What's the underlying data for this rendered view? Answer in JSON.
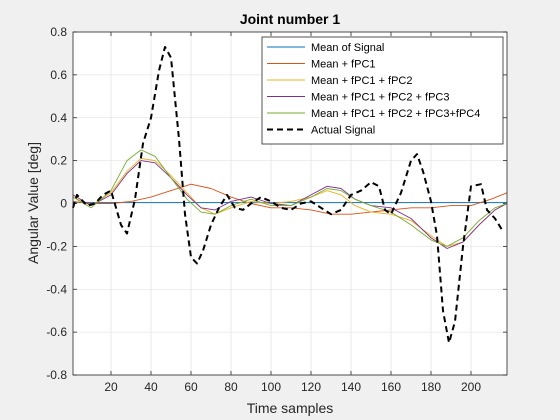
{
  "chart_data": {
    "type": "line",
    "title": "Joint number 1",
    "xlabel": "Time samples",
    "ylabel": "Angular Value [deg]",
    "xlim": [
      1,
      218
    ],
    "ylim": [
      -0.8,
      0.8
    ],
    "xticks": [
      20,
      40,
      60,
      80,
      100,
      120,
      140,
      160,
      180,
      200
    ],
    "yticks": [
      -0.8,
      -0.6,
      -0.4,
      -0.2,
      0,
      0.2,
      0.4,
      0.6,
      0.8
    ],
    "grid": true,
    "legend_position": "top-right",
    "series": [
      {
        "name": "Mean of Signal",
        "color": "#0072bd",
        "dash": "solid",
        "x": [
          1,
          218
        ],
        "y": [
          0.005,
          0.005
        ]
      },
      {
        "name": "Mean + fPC1",
        "color": "#d95319",
        "dash": "solid",
        "x": [
          1,
          10,
          20,
          30,
          40,
          50,
          60,
          70,
          80,
          90,
          100,
          110,
          120,
          130,
          140,
          150,
          160,
          170,
          180,
          190,
          200,
          210,
          218
        ],
        "y": [
          0.01,
          0.0,
          0.0,
          0.01,
          0.03,
          0.06,
          0.09,
          0.07,
          0.03,
          0.0,
          -0.02,
          -0.02,
          -0.03,
          -0.05,
          -0.05,
          -0.04,
          -0.03,
          -0.02,
          -0.02,
          -0.01,
          -0.01,
          0.02,
          0.05
        ]
      },
      {
        "name": "Mean + fPC1 + fPC2",
        "color": "#edb120",
        "dash": "solid",
        "x": [
          1,
          10,
          20,
          28,
          35,
          42,
          50,
          58,
          65,
          72,
          80,
          90,
          100,
          110,
          120,
          128,
          135,
          142,
          150,
          160,
          170,
          180,
          188,
          196,
          204,
          212,
          218
        ],
        "y": [
          0.03,
          -0.01,
          0.05,
          0.15,
          0.21,
          0.2,
          0.13,
          0.05,
          -0.02,
          -0.05,
          -0.02,
          0.01,
          0.0,
          0.01,
          0.03,
          0.06,
          0.04,
          -0.01,
          -0.04,
          -0.05,
          -0.08,
          -0.15,
          -0.2,
          -0.18,
          -0.1,
          -0.03,
          0.0
        ]
      },
      {
        "name": "Mean + fPC1 + fPC2 + fPC3",
        "color": "#7e2f8e",
        "dash": "solid",
        "x": [
          1,
          10,
          20,
          28,
          35,
          42,
          50,
          58,
          65,
          72,
          80,
          90,
          100,
          110,
          120,
          128,
          135,
          142,
          150,
          160,
          170,
          180,
          188,
          196,
          204,
          212,
          218
        ],
        "y": [
          0.04,
          -0.01,
          0.04,
          0.14,
          0.2,
          0.19,
          0.12,
          0.04,
          -0.02,
          -0.03,
          0.01,
          0.03,
          0.0,
          -0.01,
          0.04,
          0.08,
          0.07,
          0.02,
          -0.01,
          -0.02,
          -0.07,
          -0.16,
          -0.21,
          -0.18,
          -0.1,
          -0.03,
          0.0
        ]
      },
      {
        "name": "Mean + fPC1 + fPC2 + fPC3+fPC4",
        "color": "#77ac30",
        "dash": "solid",
        "x": [
          1,
          10,
          20,
          28,
          35,
          42,
          50,
          58,
          65,
          72,
          80,
          90,
          100,
          110,
          120,
          128,
          135,
          142,
          150,
          160,
          170,
          180,
          188,
          196,
          204,
          212,
          218
        ],
        "y": [
          0.03,
          -0.02,
          0.06,
          0.2,
          0.25,
          0.22,
          0.12,
          0.02,
          -0.04,
          -0.05,
          -0.01,
          0.02,
          -0.01,
          -0.01,
          0.03,
          0.07,
          0.06,
          0.02,
          -0.01,
          -0.04,
          -0.1,
          -0.17,
          -0.2,
          -0.16,
          -0.08,
          -0.02,
          0.0
        ]
      },
      {
        "name": "Actual Signal",
        "color": "#000000",
        "dash": "dashed",
        "x": [
          1,
          3,
          8,
          12,
          16,
          20,
          25,
          28,
          32,
          36,
          40,
          44,
          47,
          50,
          54,
          57,
          60,
          63,
          66,
          70,
          74,
          78,
          82,
          86,
          90,
          95,
          100,
          105,
          110,
          115,
          120,
          125,
          130,
          135,
          140,
          145,
          150,
          154,
          157,
          160,
          165,
          170,
          173,
          176,
          180,
          183,
          186,
          189,
          192,
          196,
          200,
          205,
          208,
          212,
          216
        ],
        "y": [
          -0.02,
          0.04,
          -0.01,
          0.0,
          0.04,
          0.06,
          -0.1,
          -0.14,
          0.02,
          0.28,
          0.4,
          0.62,
          0.73,
          0.68,
          0.3,
          -0.05,
          -0.25,
          -0.28,
          -0.22,
          -0.1,
          -0.02,
          0.04,
          -0.02,
          -0.03,
          0.0,
          0.03,
          0.01,
          -0.02,
          -0.03,
          0.0,
          0.01,
          -0.02,
          -0.05,
          -0.03,
          0.04,
          0.06,
          0.1,
          0.08,
          -0.03,
          -0.05,
          0.05,
          0.2,
          0.23,
          0.15,
          0.01,
          -0.15,
          -0.5,
          -0.65,
          -0.55,
          -0.2,
          0.08,
          0.09,
          -0.03,
          -0.07,
          -0.13
        ]
      }
    ]
  }
}
